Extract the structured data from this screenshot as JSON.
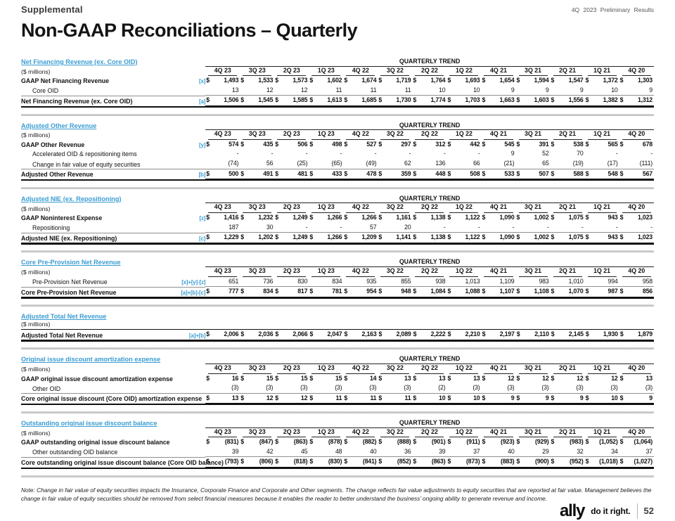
{
  "header": {
    "eyebrow": "Supplemental",
    "top_right": "4Q 2023 Preliminary Results",
    "title": "Non-GAAP Reconciliations – Quarterly"
  },
  "labels": {
    "quarterly_trend": "QUARTERLY TREND",
    "millions": "($ millions)"
  },
  "colors": {
    "accent_blue": "#3A9CD2",
    "divider_gray": "#C9C9C9"
  },
  "columns": [
    "4Q 23",
    "3Q 23",
    "2Q 23",
    "1Q 23",
    "4Q 22",
    "3Q 22",
    "2Q 22",
    "1Q 22",
    "4Q 21",
    "3Q 21",
    "2Q 21",
    "1Q 21",
    "4Q 20"
  ],
  "tables": [
    {
      "title": "Net Financing Revenue (ex. Core OID)",
      "trend": true,
      "headers": true,
      "rows": [
        {
          "label": "GAAP Net Financing Revenue",
          "ref": "[x]",
          "bold": true,
          "dollar": true,
          "indent": false,
          "rule": "none",
          "values": [
            "1,493",
            "1,533",
            "1,573",
            "1,602",
            "1,674",
            "1,719",
            "1,764",
            "1,693",
            "1,654",
            "1,594",
            "1,547",
            "1,372",
            "1,303"
          ]
        },
        {
          "label": "Core OID",
          "ref": "",
          "bold": false,
          "dollar": false,
          "indent": true,
          "rule": "under",
          "values": [
            "13",
            "12",
            "12",
            "11",
            "11",
            "11",
            "10",
            "10",
            "9",
            "9",
            "9",
            "10",
            "9"
          ]
        },
        {
          "label": "Net Financing Revenue (ex. Core OID)",
          "ref": "[a]",
          "bold": true,
          "dollar": true,
          "indent": false,
          "rule": "total",
          "values": [
            "1,506",
            "1,545",
            "1,585",
            "1,613",
            "1,685",
            "1,730",
            "1,774",
            "1,703",
            "1,663",
            "1,603",
            "1,556",
            "1,382",
            "1,312"
          ]
        }
      ]
    },
    {
      "title": "Adjusted Other Revenue",
      "trend": true,
      "headers": true,
      "rows": [
        {
          "label": "GAAP Other Revenue",
          "ref": "[y]",
          "bold": true,
          "dollar": true,
          "indent": false,
          "rule": "none",
          "values": [
            "574",
            "435",
            "506",
            "498",
            "527",
            "297",
            "312",
            "442",
            "545",
            "391",
            "538",
            "565",
            "678"
          ]
        },
        {
          "label": "Accelerated OID & repositioning items",
          "ref": "",
          "bold": false,
          "dollar": false,
          "indent": true,
          "rule": "none",
          "values": [
            "-",
            "-",
            "-",
            "-",
            "-",
            "-",
            "-",
            "-",
            "9",
            "52",
            "70",
            "-",
            "-"
          ]
        },
        {
          "label": "Change in fair value of equity securities",
          "ref": "",
          "bold": false,
          "dollar": false,
          "indent": true,
          "rule": "under",
          "values": [
            "(74)",
            "56",
            "(25)",
            "(65)",
            "(49)",
            "62",
            "136",
            "66",
            "(21)",
            "65",
            "(19)",
            "(17)",
            "(111)"
          ]
        },
        {
          "label": "Adjusted Other Revenue",
          "ref": "[b]",
          "bold": true,
          "dollar": true,
          "indent": false,
          "rule": "total",
          "values": [
            "500",
            "491",
            "481",
            "433",
            "478",
            "359",
            "448",
            "508",
            "533",
            "507",
            "588",
            "548",
            "567"
          ]
        }
      ]
    },
    {
      "title": "Adjusted NIE (ex. Repositioning)",
      "trend": true,
      "headers": true,
      "rows": [
        {
          "label": "GAAP Noninterest Expense",
          "ref": "[z]",
          "bold": true,
          "dollar": true,
          "indent": false,
          "rule": "none",
          "values": [
            "1,416",
            "1,232",
            "1,249",
            "1,266",
            "1,266",
            "1,161",
            "1,138",
            "1,122",
            "1,090",
            "1,002",
            "1,075",
            "943",
            "1,023"
          ]
        },
        {
          "label": "Repositioning",
          "ref": "",
          "bold": false,
          "dollar": false,
          "indent": true,
          "rule": "under",
          "values": [
            "187",
            "30",
            "-",
            "-",
            "57",
            "20",
            "-",
            "-",
            "-",
            "-",
            "-",
            "-",
            "-"
          ]
        },
        {
          "label": "Adjusted NIE (ex. Repositioning)",
          "ref": "[c]",
          "bold": true,
          "dollar": true,
          "indent": false,
          "rule": "total",
          "values": [
            "1,229",
            "1,202",
            "1,249",
            "1,266",
            "1,209",
            "1,141",
            "1,138",
            "1,122",
            "1,090",
            "1,002",
            "1,075",
            "943",
            "1,023"
          ]
        }
      ]
    },
    {
      "title": "Core Pre-Provision Net Revenue",
      "trend": true,
      "headers": true,
      "rows": [
        {
          "label": "Pre-Provision Net Revenue",
          "ref": "[x]+[y]-[z]",
          "bold": false,
          "dollar": false,
          "indent": true,
          "rule": "under",
          "values": [
            "651",
            "736",
            "830",
            "834",
            "935",
            "855",
            "938",
            "1,013",
            "1,109",
            "983",
            "1,010",
            "994",
            "958"
          ]
        },
        {
          "label": "Core Pre-Provision Net Revenue",
          "ref": "[a]+[b]-[c]",
          "bold": true,
          "dollar": true,
          "indent": false,
          "rule": "total",
          "values": [
            "777",
            "834",
            "817",
            "781",
            "954",
            "948",
            "1,084",
            "1,088",
            "1,107",
            "1,108",
            "1,070",
            "987",
            "856"
          ]
        }
      ]
    },
    {
      "title": "Adjusted Total Net Revenue",
      "trend": false,
      "headers": false,
      "rows": [
        {
          "label": "Adjusted Total Net Revenue",
          "ref": "[a]+[b]",
          "bold": true,
          "dollar": true,
          "indent": false,
          "rule": "total-top",
          "values": [
            "2,006",
            "2,036",
            "2,066",
            "2,047",
            "2,163",
            "2,089",
            "2,222",
            "2,210",
            "2,197",
            "2,110",
            "2,145",
            "1,930",
            "1,879"
          ]
        }
      ]
    },
    {
      "title": "Original issue discount amortization expense",
      "trend": true,
      "headers": true,
      "rows": [
        {
          "label": "GAAP original issue discount amortization expense",
          "ref": "",
          "bold": true,
          "dollar": true,
          "indent": false,
          "rule": "none",
          "values": [
            "16",
            "15",
            "15",
            "15",
            "14",
            "13",
            "13",
            "13",
            "12",
            "12",
            "12",
            "12",
            "13"
          ]
        },
        {
          "label": "Other OID",
          "ref": "",
          "bold": false,
          "dollar": false,
          "indent": true,
          "rule": "under",
          "values": [
            "(3)",
            "(3)",
            "(3)",
            "(3)",
            "(3)",
            "(3)",
            "(2)",
            "(3)",
            "(3)",
            "(3)",
            "(3)",
            "(3)",
            "(3)"
          ]
        },
        {
          "label": "Core original issue discount (Core OID) amortization expense",
          "ref": "",
          "bold": true,
          "dollar": true,
          "indent": false,
          "rule": "total",
          "values": [
            "13",
            "12",
            "12",
            "11",
            "11",
            "11",
            "10",
            "10",
            "9",
            "9",
            "9",
            "10",
            "9"
          ]
        }
      ]
    },
    {
      "title": "Outstanding original issue discount balance",
      "trend": true,
      "headers": true,
      "rows": [
        {
          "label": "GAAP outstanding original issue discount balance",
          "ref": "",
          "bold": true,
          "dollar": true,
          "indent": false,
          "rule": "none",
          "values": [
            "(831)",
            "(847)",
            "(863)",
            "(878)",
            "(882)",
            "(888)",
            "(901)",
            "(911)",
            "(923)",
            "(929)",
            "(983)",
            "(1,052)",
            "(1,064)"
          ]
        },
        {
          "label": "Other outstanding OID balance",
          "ref": "",
          "bold": false,
          "dollar": false,
          "indent": true,
          "rule": "under",
          "values": [
            "39",
            "42",
            "45",
            "48",
            "40",
            "36",
            "39",
            "37",
            "40",
            "29",
            "32",
            "34",
            "37"
          ]
        },
        {
          "label": "Core outstanding original issue discount balance (Core OID balance)",
          "ref": "",
          "bold": true,
          "dollar": true,
          "indent": false,
          "rule": "total",
          "values": [
            "(793)",
            "(806)",
            "(818)",
            "(830)",
            "(841)",
            "(852)",
            "(863)",
            "(873)",
            "(883)",
            "(900)",
            "(952)",
            "(1,018)",
            "(1,027)"
          ]
        }
      ]
    }
  ],
  "note": "Note: Change in fair value of equity securities impacts the Insurance, Corporate Finance and Corporate and Other segments. The change reflects fair value adjustments to equity securities that are reported at fair value. Management believes the change in fair value of equity securities should be removed from select financial measures because it enables the reader to better understand the business’ ongoing ability to generate revenue and income.",
  "footer": {
    "logo": "ally",
    "tagline": "do it right.",
    "page": "52"
  }
}
